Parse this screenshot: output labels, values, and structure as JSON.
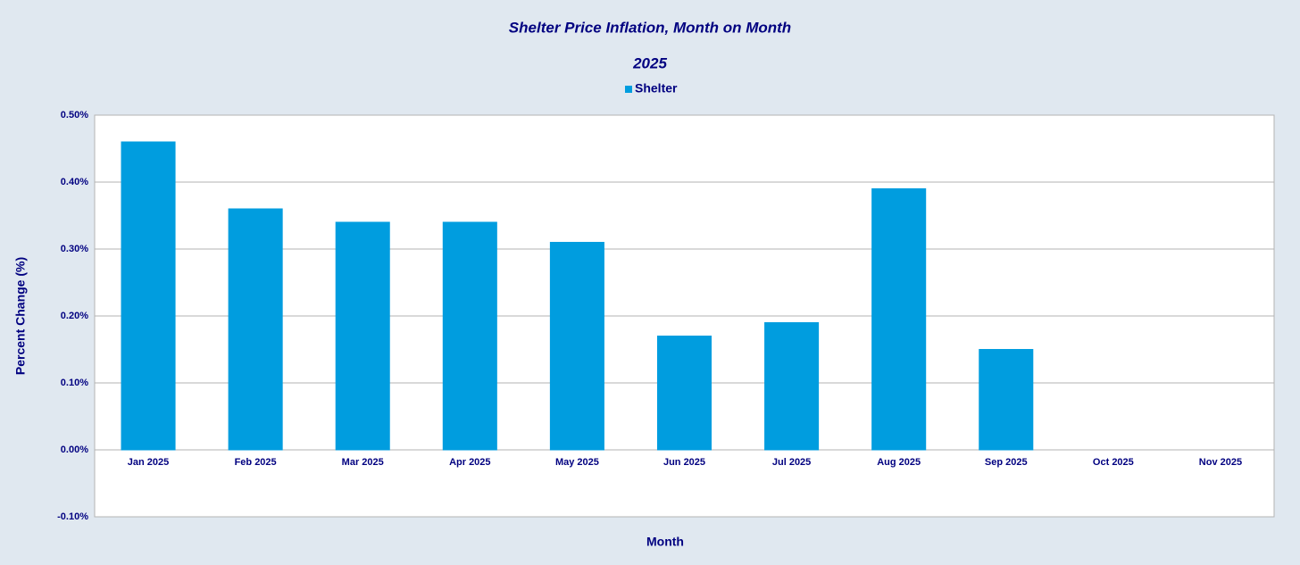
{
  "chart_data": {
    "type": "bar",
    "title": "Shelter Price Inflation, Month on Month",
    "subtitle": "2025",
    "x_label": "Month",
    "y_label": "Percent Change (%)",
    "categories": [
      "Jan 2025",
      "Feb 2025",
      "Mar 2025",
      "Apr 2025",
      "May 2025",
      "Jun 2025",
      "Jul 2025",
      "Aug 2025",
      "Sep 2025",
      "Oct 2025",
      "Nov 2025"
    ],
    "series": [
      {
        "name": "Shelter",
        "color": "#009ddf",
        "values": [
          0.46,
          0.36,
          0.34,
          0.34,
          0.31,
          0.17,
          0.19,
          0.39,
          0.15,
          0,
          0
        ]
      }
    ],
    "ylim": [
      -0.1,
      0.5
    ],
    "yticks": [
      {
        "value": -0.1,
        "label": "-0.10%"
      },
      {
        "value": 0,
        "label": "0.00%"
      },
      {
        "value": 0.1,
        "label": "0.10%"
      },
      {
        "value": 0.2,
        "label": "0.20%"
      },
      {
        "value": 0.3,
        "label": "0.30%"
      },
      {
        "value": 0.4,
        "label": "0.40%"
      },
      {
        "value": 0.5,
        "label": "0.50%"
      }
    ],
    "grid": true,
    "legend": "top"
  }
}
